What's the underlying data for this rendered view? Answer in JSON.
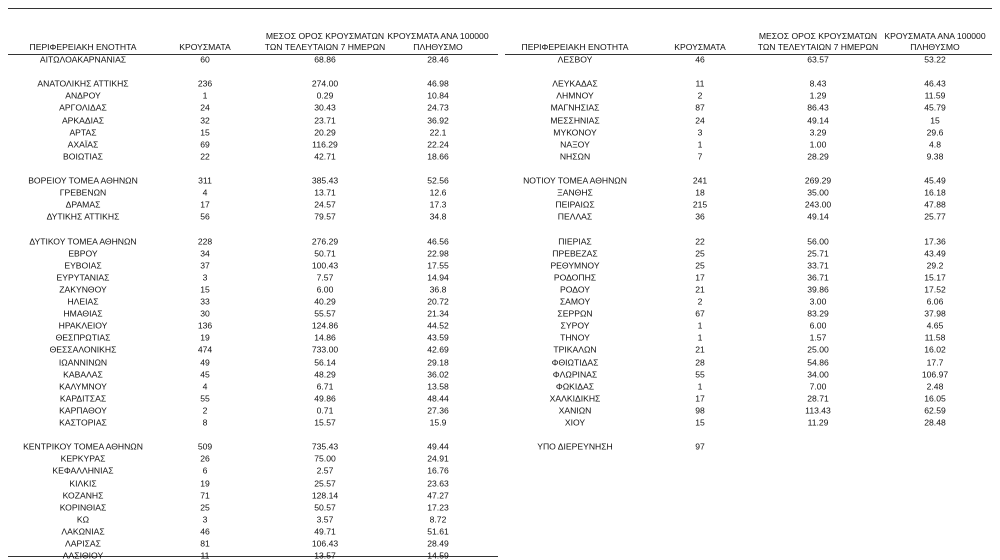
{
  "tables": [
    {
      "columns": [
        "ΠΕΡΙΦΕΡΕΙΑΚΗ ΕΝΟΤΗΤΑ",
        "ΚΡΟΥΣΜΑΤΑ",
        "ΜΕΣΟΣ ΟΡΟΣ ΚΡΟΥΣΜΑΤΩΝ ΤΩΝ ΤΕΛΕΥΤΑΙΩΝ 7 ΗΜΕΡΩΝ",
        "ΚΡΟΥΣΜΑΤΑ ΑΝΑ 100000 ΠΛΗΘΥΣΜΟ"
      ],
      "rows": [
        [
          "ΑΙΤΩΛΟΑΚΑΡΝΑΝΙΑΣ",
          "60",
          "68.86",
          "28.46"
        ],
        null,
        [
          "ΑΝΑΤΟΛΙΚΗΣ ΑΤΤΙΚΗΣ",
          "236",
          "274.00",
          "46.98"
        ],
        [
          "ΑΝΔΡΟΥ",
          "1",
          "0.29",
          "10.84"
        ],
        [
          "ΑΡΓΟΛΙΔΑΣ",
          "24",
          "30.43",
          "24.73"
        ],
        [
          "ΑΡΚΑΔΙΑΣ",
          "32",
          "23.71",
          "36.92"
        ],
        [
          "ΑΡΤΑΣ",
          "15",
          "20.29",
          "22.1"
        ],
        [
          "ΑΧΑΪΑΣ",
          "69",
          "116.29",
          "22.24"
        ],
        [
          "ΒΟΙΩΤΙΑΣ",
          "22",
          "42.71",
          "18.66"
        ],
        null,
        [
          "ΒΟΡΕΙΟΥ ΤΟΜΕΑ ΑΘΗΝΩΝ",
          "311",
          "385.43",
          "52.56"
        ],
        [
          "ΓΡΕΒΕΝΩΝ",
          "4",
          "13.71",
          "12.6"
        ],
        [
          "ΔΡΑΜΑΣ",
          "17",
          "24.57",
          "17.3"
        ],
        [
          "ΔΥΤΙΚΗΣ ΑΤΤΙΚΗΣ",
          "56",
          "79.57",
          "34.8"
        ],
        null,
        [
          "ΔΥΤΙΚΟΥ ΤΟΜΕΑ ΑΘΗΝΩΝ",
          "228",
          "276.29",
          "46.56"
        ],
        [
          "ΕΒΡΟΥ",
          "34",
          "50.71",
          "22.98"
        ],
        [
          "ΕΥΒΟΙΑΣ",
          "37",
          "100.43",
          "17.55"
        ],
        [
          "ΕΥΡΥΤΑΝΙΑΣ",
          "3",
          "7.57",
          "14.94"
        ],
        [
          "ΖΑΚΥΝΘΟΥ",
          "15",
          "6.00",
          "36.8"
        ],
        [
          "ΗΛΕΙΑΣ",
          "33",
          "40.29",
          "20.72"
        ],
        [
          "ΗΜΑΘΙΑΣ",
          "30",
          "55.57",
          "21.34"
        ],
        [
          "ΗΡΑΚΛΕΙΟΥ",
          "136",
          "124.86",
          "44.52"
        ],
        [
          "ΘΕΣΠΡΩΤΙΑΣ",
          "19",
          "14.86",
          "43.59"
        ],
        [
          "ΘΕΣΣΑΛΟΝΙΚΗΣ",
          "474",
          "733.00",
          "42.69"
        ],
        [
          "ΙΩΑΝΝΙΝΩΝ",
          "49",
          "56.14",
          "29.18"
        ],
        [
          "ΚΑΒΑΛΑΣ",
          "45",
          "48.29",
          "36.02"
        ],
        [
          "ΚΑΛΥΜΝΟΥ",
          "4",
          "6.71",
          "13.58"
        ],
        [
          "ΚΑΡΔΙΤΣΑΣ",
          "55",
          "49.86",
          "48.44"
        ],
        [
          "ΚΑΡΠΑΘΟΥ",
          "2",
          "0.71",
          "27.36"
        ],
        [
          "ΚΑΣΤΟΡΙΑΣ",
          "8",
          "15.57",
          "15.9"
        ],
        null,
        [
          "ΚΕΝΤΡΙΚΟΥ ΤΟΜΕΑ ΑΘΗΝΩΝ",
          "509",
          "735.43",
          "49.44"
        ],
        [
          "ΚΕΡΚΥΡΑΣ",
          "26",
          "75.00",
          "24.91"
        ],
        [
          "ΚΕΦΑΛΛΗΝΙΑΣ",
          "6",
          "2.57",
          "16.76"
        ],
        [
          "ΚΙΛΚΙΣ",
          "19",
          "25.57",
          "23.63"
        ],
        [
          "ΚΟΖΑΝΗΣ",
          "71",
          "128.14",
          "47.27"
        ],
        [
          "ΚΟΡΙΝΘΙΑΣ",
          "25",
          "50.57",
          "17.23"
        ],
        [
          "ΚΩ",
          "3",
          "3.57",
          "8.72"
        ],
        [
          "ΛΑΚΩΝΙΑΣ",
          "46",
          "49.71",
          "51.61"
        ],
        [
          "ΛΑΡΙΣΑΣ",
          "81",
          "106.43",
          "28.49"
        ],
        [
          "ΛΑΣΙΘΙΟΥ",
          "11",
          "13.57",
          "14.59"
        ]
      ]
    },
    {
      "columns": [
        "ΠΕΡΙΦΕΡΕΙΑΚΗ ΕΝΟΤΗΤΑ",
        "ΚΡΟΥΣΜΑΤΑ",
        "ΜΕΣΟΣ ΟΡΟΣ ΚΡΟΥΣΜΑΤΩΝ ΤΩΝ ΤΕΛΕΥΤΑΙΩΝ 7 ΗΜΕΡΩΝ",
        "ΚΡΟΥΣΜΑΤΑ ΑΝΑ 100000 ΠΛΗΘΥΣΜΟ"
      ],
      "rows": [
        [
          "ΛΕΣΒΟΥ",
          "46",
          "63.57",
          "53.22"
        ],
        null,
        [
          "ΛΕΥΚΑΔΑΣ",
          "11",
          "8.43",
          "46.43"
        ],
        [
          "ΛΗΜΝΟΥ",
          "2",
          "1.29",
          "11.59"
        ],
        [
          "ΜΑΓΝΗΣΙΑΣ",
          "87",
          "86.43",
          "45.79"
        ],
        [
          "ΜΕΣΣΗΝΙΑΣ",
          "24",
          "49.14",
          "15"
        ],
        [
          "ΜΥΚΟΝΟΥ",
          "3",
          "3.29",
          "29.6"
        ],
        [
          "ΝΑΞΟΥ",
          "1",
          "1.00",
          "4.8"
        ],
        [
          "ΝΗΣΩΝ",
          "7",
          "28.29",
          "9.38"
        ],
        null,
        [
          "ΝΟΤΙΟΥ ΤΟΜΕΑ ΑΘΗΝΩΝ",
          "241",
          "269.29",
          "45.49"
        ],
        [
          "ΞΑΝΘΗΣ",
          "18",
          "35.00",
          "16.18"
        ],
        [
          "ΠΕΙΡΑΙΩΣ",
          "215",
          "243.00",
          "47.88"
        ],
        [
          "ΠΕΛΛΑΣ",
          "36",
          "49.14",
          "25.77"
        ],
        null,
        [
          "ΠΙΕΡΙΑΣ",
          "22",
          "56.00",
          "17.36"
        ],
        [
          "ΠΡΕΒΕΖΑΣ",
          "25",
          "25.71",
          "43.49"
        ],
        [
          "ΡΕΘΥΜΝΟΥ",
          "25",
          "33.71",
          "29.2"
        ],
        [
          "ΡΟΔΟΠΗΣ",
          "17",
          "36.71",
          "15.17"
        ],
        [
          "ΡΟΔΟΥ",
          "21",
          "39.86",
          "17.52"
        ],
        [
          "ΣΑΜΟΥ",
          "2",
          "3.00",
          "6.06"
        ],
        [
          "ΣΕΡΡΩΝ",
          "67",
          "83.29",
          "37.98"
        ],
        [
          "ΣΥΡΟΥ",
          "1",
          "6.00",
          "4.65"
        ],
        [
          "ΤΗΝΟΥ",
          "1",
          "1.57",
          "11.58"
        ],
        [
          "ΤΡΙΚΑΛΩΝ",
          "21",
          "25.00",
          "16.02"
        ],
        [
          "ΦΘΙΩΤΙΔΑΣ",
          "28",
          "54.86",
          "17.7"
        ],
        [
          "ΦΛΩΡΙΝΑΣ",
          "55",
          "34.00",
          "106.97"
        ],
        [
          "ΦΩΚΙΔΑΣ",
          "1",
          "7.00",
          "2.48"
        ],
        [
          "ΧΑΛΚΙΔΙΚΗΣ",
          "17",
          "28.71",
          "16.05"
        ],
        [
          "ΧΑΝΙΩΝ",
          "98",
          "113.43",
          "62.59"
        ],
        [
          "ΧΙΟΥ",
          "15",
          "11.29",
          "28.48"
        ],
        null,
        [
          "ΥΠΟ ΔΙΕΡΕΥΝΗΣΗ",
          "97"
        ]
      ]
    }
  ]
}
